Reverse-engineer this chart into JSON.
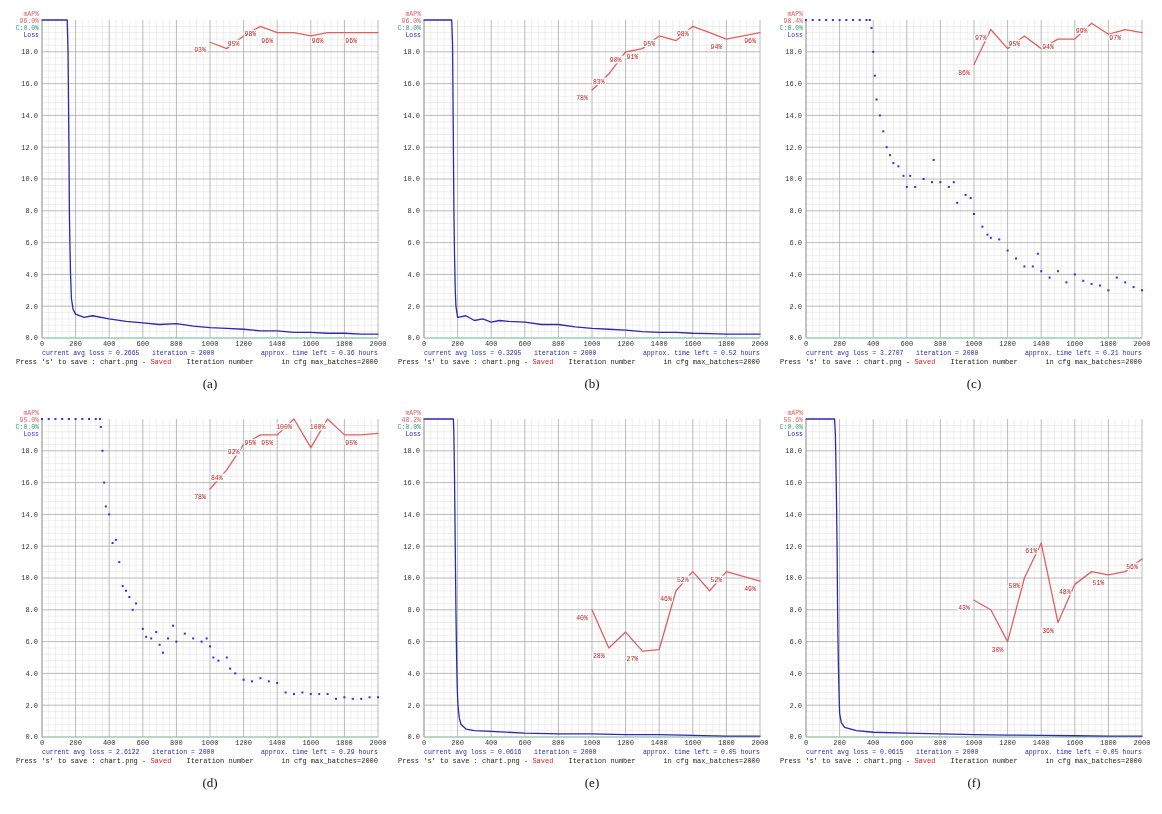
{
  "chart_data": [
    {
      "type": "line",
      "title": "(a)",
      "xlabel": "Iteration number",
      "xlim": [
        0,
        2000
      ],
      "xticks": [
        0,
        200,
        400,
        600,
        800,
        1000,
        1200,
        1400,
        1600,
        1800,
        2000
      ],
      "ylim": [
        0,
        20
      ],
      "yticks": [
        {
          "value": 0,
          "label": "0.0"
        },
        {
          "value": 2,
          "label": "2.0"
        },
        {
          "value": 4,
          "label": "4.0"
        },
        {
          "value": 6,
          "label": "6.0"
        },
        {
          "value": 8,
          "label": "8.0"
        },
        {
          "value": 10,
          "label": "10.0"
        },
        {
          "value": 12,
          "label": "12.0"
        },
        {
          "value": 14,
          "label": "14.0"
        },
        {
          "value": 16,
          "label": "16.0"
        },
        {
          "value": 18,
          "label": "18.0"
        }
      ],
      "y2lim": [
        0,
        100
      ],
      "grid": true,
      "legend": "top left",
      "annotations": [
        "96.0%",
        "C:0.0%",
        "current avg loss = 0.2665",
        "iteration = 2000",
        "approx. time left = 0.36 hours",
        "Press 's' to save : chart.png - ",
        "Saved",
        "in cfg max_batches=2000"
      ],
      "series": [
        {
          "name": "Loss",
          "color": "#2a2ab0",
          "x": [
            0,
            150,
            155,
            160,
            163,
            166,
            170,
            175,
            185,
            200,
            250,
            300,
            400,
            500,
            600,
            700,
            800,
            900,
            1000,
            1100,
            1200,
            1300,
            1400,
            1500,
            1600,
            1700,
            1800,
            1900,
            2000
          ],
          "values": [
            20,
            20,
            18,
            12.4,
            8,
            6,
            4,
            2.5,
            1.8,
            1.5,
            1.3,
            1.4,
            1.2,
            1.05,
            0.95,
            0.85,
            0.9,
            0.75,
            0.65,
            0.6,
            0.55,
            0.45,
            0.45,
            0.35,
            0.35,
            0.3,
            0.3,
            0.25,
            0.25
          ]
        },
        {
          "name": "mAP%",
          "axis": "y2",
          "color": "#e06060",
          "x": [
            1000,
            1100,
            1200,
            1300,
            1400,
            1500,
            1600,
            1700,
            1800,
            1900,
            2000
          ],
          "values": [
            93,
            91,
            95,
            98,
            96,
            96,
            95,
            96,
            96,
            96,
            96
          ],
          "value_labels": [
            "93%",
            null,
            "95%",
            "98%",
            "96%",
            null,
            null,
            "96%",
            null,
            "96%",
            null
          ]
        }
      ]
    },
    {
      "type": "line",
      "title": "(b)",
      "xlabel": "Iteration number",
      "xlim": [
        0,
        2000
      ],
      "xticks": [
        0,
        200,
        400,
        600,
        800,
        1000,
        1200,
        1400,
        1600,
        1800,
        2000
      ],
      "ylim": [
        0,
        20
      ],
      "yticks": [
        {
          "value": 0,
          "label": "0.0"
        },
        {
          "value": 2,
          "label": "2.0"
        },
        {
          "value": 4,
          "label": "4.0"
        },
        {
          "value": 6,
          "label": "6.0"
        },
        {
          "value": 8,
          "label": "8.0"
        },
        {
          "value": 10,
          "label": "10.0"
        },
        {
          "value": 12,
          "label": "12.0"
        },
        {
          "value": 14,
          "label": "14.0"
        },
        {
          "value": 16,
          "label": "16.0"
        },
        {
          "value": 18,
          "label": "18.0"
        }
      ],
      "y2lim": [
        0,
        100
      ],
      "grid": true,
      "legend": "top left",
      "annotations": [
        "96.0%",
        "C:0.0%",
        "current avg loss = 0.3295",
        "iteration = 2000",
        "approx. time left = 0.52 hours",
        "Press 's' to save : chart.png - ",
        "Saved",
        "in cfg max_batches=2000"
      ],
      "series": [
        {
          "name": "Loss",
          "color": "#2a2ab0",
          "x": [
            0,
            165,
            170,
            175,
            178,
            182,
            186,
            190,
            200,
            250,
            300,
            350,
            400,
            450,
            500,
            600,
            700,
            800,
            900,
            1000,
            1100,
            1200,
            1300,
            1400,
            1500,
            1600,
            1700,
            1800,
            1900,
            2000
          ],
          "values": [
            20,
            20,
            18.5,
            12,
            8,
            5,
            3,
            2,
            1.3,
            1.4,
            1.1,
            1.2,
            1,
            1.1,
            1.05,
            1,
            0.85,
            0.85,
            0.7,
            0.6,
            0.55,
            0.5,
            0.4,
            0.35,
            0.35,
            0.3,
            0.28,
            0.25,
            0.25,
            0.25
          ]
        },
        {
          "name": "mAP%",
          "axis": "y2",
          "color": "#e06060",
          "x": [
            1000,
            1100,
            1200,
            1300,
            1400,
            1500,
            1600,
            1700,
            1800,
            1900,
            2000
          ],
          "values": [
            78,
            83,
            90,
            91,
            95,
            93.5,
            98,
            96,
            94,
            95,
            96
          ],
          "value_labels": [
            "78%",
            "83%",
            "90%",
            "91%",
            "95%",
            null,
            "98%",
            null,
            "94%",
            null,
            "96%"
          ]
        }
      ]
    },
    {
      "type": "line",
      "title": "(c)",
      "xlabel": "Iteration number",
      "xlim": [
        0,
        2000
      ],
      "xticks": [
        0,
        200,
        400,
        600,
        800,
        1000,
        1200,
        1400,
        1600,
        1800,
        2000
      ],
      "ylim": [
        0,
        20
      ],
      "yticks": [
        {
          "value": 0,
          "label": "0.0"
        },
        {
          "value": 2,
          "label": "2.0"
        },
        {
          "value": 4,
          "label": "4.0"
        },
        {
          "value": 6,
          "label": "6.0"
        },
        {
          "value": 8,
          "label": "8.0"
        },
        {
          "value": 10,
          "label": "10.0"
        },
        {
          "value": 12,
          "label": "12.0"
        },
        {
          "value": 14,
          "label": "14.0"
        },
        {
          "value": 16,
          "label": "16.0"
        },
        {
          "value": 18,
          "label": "18.0"
        }
      ],
      "y2lim": [
        0,
        100
      ],
      "grid": true,
      "legend": "top left",
      "annotations": [
        "98.4%",
        "C:0.0%",
        "current avg loss = 3.2707",
        "iteration = 2000",
        "approx. time left = 0.21 hours",
        "Press 's' to save : chart.png - ",
        "Saved",
        "in cfg max_batches=2000"
      ],
      "series": [
        {
          "name": "Loss",
          "type": "scatter",
          "color": "#3030f0",
          "x": [
            0,
            40,
            80,
            120,
            160,
            200,
            240,
            280,
            320,
            360,
            380,
            390,
            400,
            410,
            420,
            440,
            460,
            480,
            500,
            520,
            550,
            580,
            600,
            620,
            650,
            700,
            750,
            760,
            800,
            850,
            880,
            900,
            950,
            980,
            1000,
            1050,
            1080,
            1100,
            1150,
            1200,
            1250,
            1300,
            1350,
            1380,
            1400,
            1450,
            1500,
            1550,
            1600,
            1650,
            1700,
            1750,
            1800,
            1850,
            1900,
            1950,
            2000
          ],
          "values": [
            20,
            20,
            20,
            20,
            20,
            20,
            20,
            20,
            20,
            20,
            20,
            19.5,
            18,
            16.5,
            15,
            14,
            13,
            12,
            11.5,
            11,
            10.8,
            10.2,
            9.5,
            10.2,
            9.5,
            10,
            9.8,
            11.2,
            9.8,
            9.5,
            9.8,
            8.5,
            9,
            8.8,
            7.8,
            7,
            6.5,
            6.3,
            6.2,
            5.5,
            5,
            4.5,
            4.5,
            5.3,
            4.2,
            3.8,
            4.2,
            3.5,
            4,
            3.6,
            3.4,
            3.3,
            3,
            3.8,
            3.5,
            3.2,
            3
          ]
        },
        {
          "name": "mAP%",
          "axis": "y2",
          "color": "#e06060",
          "x": [
            1000,
            1100,
            1200,
            1300,
            1400,
            1500,
            1600,
            1700,
            1800,
            1900,
            2000
          ],
          "values": [
            86,
            97,
            91,
            95,
            91,
            94,
            94,
            99,
            95.5,
            97,
            96
          ],
          "value_labels": [
            "86%",
            "97%",
            null,
            "95%",
            null,
            "94%",
            null,
            "99%",
            null,
            "97%",
            null
          ]
        }
      ]
    },
    {
      "type": "line",
      "title": "(d)",
      "xlabel": "Iteration number",
      "xlim": [
        0,
        2000
      ],
      "xticks": [
        0,
        200,
        400,
        600,
        800,
        1000,
        1200,
        1400,
        1600,
        1800,
        2000
      ],
      "ylim": [
        0,
        20
      ],
      "yticks": [
        {
          "value": 0,
          "label": "0.0"
        },
        {
          "value": 2,
          "label": "2.0"
        },
        {
          "value": 4,
          "label": "4.0"
        },
        {
          "value": 6,
          "label": "6.0"
        },
        {
          "value": 8,
          "label": "8.0"
        },
        {
          "value": 10,
          "label": "10.0"
        },
        {
          "value": 12,
          "label": "12.0"
        },
        {
          "value": 14,
          "label": "14.0"
        },
        {
          "value": 16,
          "label": "16.0"
        },
        {
          "value": 18,
          "label": "18.0"
        }
      ],
      "y2lim": [
        0,
        100
      ],
      "grid": true,
      "legend": "top left",
      "annotations": [
        "95.0%",
        "C:0.0%",
        "current avg loss = 2.6122",
        "iteration = 2000",
        "approx. time left = 0.29 hours",
        "Press 's' to save : chart.png - ",
        "Saved",
        "in cfg max_batches=2000"
      ],
      "series": [
        {
          "name": "Loss",
          "type": "scatter",
          "color": "#3030f0",
          "x": [
            0,
            40,
            80,
            120,
            160,
            200,
            240,
            280,
            320,
            345,
            350,
            360,
            370,
            380,
            400,
            420,
            440,
            460,
            480,
            500,
            520,
            540,
            560,
            600,
            620,
            650,
            680,
            700,
            720,
            750,
            780,
            800,
            850,
            900,
            950,
            980,
            1000,
            1020,
            1050,
            1100,
            1120,
            1150,
            1200,
            1250,
            1300,
            1350,
            1400,
            1450,
            1500,
            1550,
            1600,
            1650,
            1700,
            1750,
            1800,
            1850,
            1900,
            1950,
            2000
          ],
          "values": [
            20,
            20,
            20,
            20,
            20,
            20,
            20,
            20,
            20,
            20,
            19.5,
            18,
            16,
            14.5,
            14,
            12.2,
            12.4,
            11,
            9.5,
            9.2,
            8.8,
            8,
            8.4,
            6.8,
            6.3,
            6.2,
            6.6,
            5.8,
            5.3,
            6.2,
            7,
            6,
            6.5,
            6.2,
            6,
            6.2,
            5.7,
            5,
            4.8,
            5,
            4.3,
            4,
            3.6,
            3.5,
            3.7,
            3.5,
            3.4,
            2.8,
            2.7,
            2.8,
            2.7,
            2.7,
            2.7,
            2.4,
            2.5,
            2.4,
            2.4,
            2.5,
            2.5
          ]
        },
        {
          "name": "mAP%",
          "axis": "y2",
          "color": "#e06060",
          "x": [
            1000,
            1100,
            1200,
            1300,
            1400,
            1500,
            1600,
            1700,
            1800,
            1900,
            2000
          ],
          "values": [
            78,
            84,
            92,
            95,
            95,
            100,
            91,
            100,
            95,
            95,
            95.5
          ],
          "value_labels": [
            "78%",
            "84%",
            "92%",
            "95%",
            "95%",
            "100%",
            null,
            "100%",
            null,
            "95%",
            null
          ]
        }
      ]
    },
    {
      "type": "line",
      "title": "(e)",
      "xlabel": "Iteration number",
      "xlim": [
        0,
        2000
      ],
      "xticks": [
        0,
        200,
        400,
        600,
        800,
        1000,
        1200,
        1400,
        1600,
        1800,
        2000
      ],
      "ylim": [
        0,
        20
      ],
      "yticks": [
        {
          "value": 0,
          "label": "0.0"
        },
        {
          "value": 2,
          "label": "2.0"
        },
        {
          "value": 4,
          "label": "4.0"
        },
        {
          "value": 6,
          "label": "6.0"
        },
        {
          "value": 8,
          "label": "8.0"
        },
        {
          "value": 10,
          "label": "10.0"
        },
        {
          "value": 12,
          "label": "12.0"
        },
        {
          "value": 14,
          "label": "14.0"
        },
        {
          "value": 16,
          "label": "16.0"
        },
        {
          "value": 18,
          "label": "18.0"
        }
      ],
      "y2lim": [
        0,
        100
      ],
      "grid": true,
      "legend": "top left",
      "annotations": [
        "48.2%",
        "C:0.0%",
        "current avg loss = 0.0616",
        "iteration = 2000",
        "approx. time left = 0.05 hours",
        "Press 's' to save : chart.png - ",
        "Saved",
        "in cfg max_batches=2000"
      ],
      "series": [
        {
          "name": "Loss",
          "color": "#2a2ab0",
          "x": [
            0,
            175,
            178,
            182,
            186,
            190,
            194,
            198,
            202,
            210,
            220,
            250,
            300,
            400,
            600,
            800,
            1000,
            1200,
            1400,
            1600,
            1800,
            2000
          ],
          "values": [
            20,
            20,
            19,
            16,
            12,
            8,
            5,
            3,
            2,
            1.2,
            0.8,
            0.5,
            0.4,
            0.35,
            0.25,
            0.2,
            0.2,
            0.15,
            0.15,
            0.1,
            0.05,
            0.05
          ]
        },
        {
          "name": "mAP%",
          "axis": "y2",
          "color": "#e06060",
          "x": [
            1000,
            1100,
            1200,
            1300,
            1400,
            1500,
            1600,
            1700,
            1800,
            1900,
            2000
          ],
          "values": [
            40,
            28,
            33,
            27,
            27.5,
            46,
            52,
            46,
            52,
            50.5,
            49
          ],
          "value_labels": [
            "40%",
            "28%",
            null,
            "27%",
            null,
            "46%",
            "52%",
            null,
            "52%",
            null,
            "49%"
          ]
        }
      ]
    },
    {
      "type": "line",
      "title": "(f)",
      "xlabel": "Iteration number",
      "xlim": [
        0,
        2000
      ],
      "xticks": [
        0,
        200,
        400,
        600,
        800,
        1000,
        1200,
        1400,
        1600,
        1800,
        2000
      ],
      "ylim": [
        0,
        20
      ],
      "yticks": [
        {
          "value": 0,
          "label": "0.0"
        },
        {
          "value": 2,
          "label": "2.0"
        },
        {
          "value": 4,
          "label": "4.0"
        },
        {
          "value": 6,
          "label": "6.0"
        },
        {
          "value": 8,
          "label": "8.0"
        },
        {
          "value": 10,
          "label": "10.0"
        },
        {
          "value": 12,
          "label": "12.0"
        },
        {
          "value": 14,
          "label": "14.0"
        },
        {
          "value": 16,
          "label": "16.0"
        },
        {
          "value": 18,
          "label": "18.0"
        }
      ],
      "y2lim": [
        0,
        100
      ],
      "grid": true,
      "legend": "top left",
      "annotations": [
        "55.6%",
        "C:0.0%",
        "current avg loss = 0.0615",
        "iteration = 2000",
        "approx. time left = 0.05 hours",
        "Press 's' to save : chart.png - ",
        "Saved",
        "in cfg max_batches=2000"
      ],
      "series": [
        {
          "name": "Loss",
          "color": "#2a2ab0",
          "x": [
            0,
            170,
            175,
            180,
            185,
            188,
            192,
            196,
            200,
            210,
            230,
            300,
            400,
            600,
            800,
            1000,
            1200,
            1400,
            1600,
            1800,
            2000
          ],
          "values": [
            20,
            20,
            19,
            16,
            12,
            8,
            5,
            3,
            1.5,
            0.9,
            0.6,
            0.4,
            0.3,
            0.25,
            0.2,
            0.15,
            0.12,
            0.1,
            0.08,
            0.05,
            0.05
          ]
        },
        {
          "name": "mAP%",
          "axis": "y2",
          "color": "#e06060",
          "x": [
            1000,
            1100,
            1200,
            1300,
            1400,
            1500,
            1600,
            1700,
            1800,
            1900,
            2000
          ],
          "values": [
            43,
            40,
            30,
            50,
            61,
            36,
            48,
            52,
            51,
            52,
            56
          ],
          "value_labels": [
            "43%",
            null,
            "30%",
            "50%",
            "61%",
            "36%",
            "48%",
            null,
            "51%",
            null,
            "56%"
          ]
        }
      ]
    }
  ]
}
